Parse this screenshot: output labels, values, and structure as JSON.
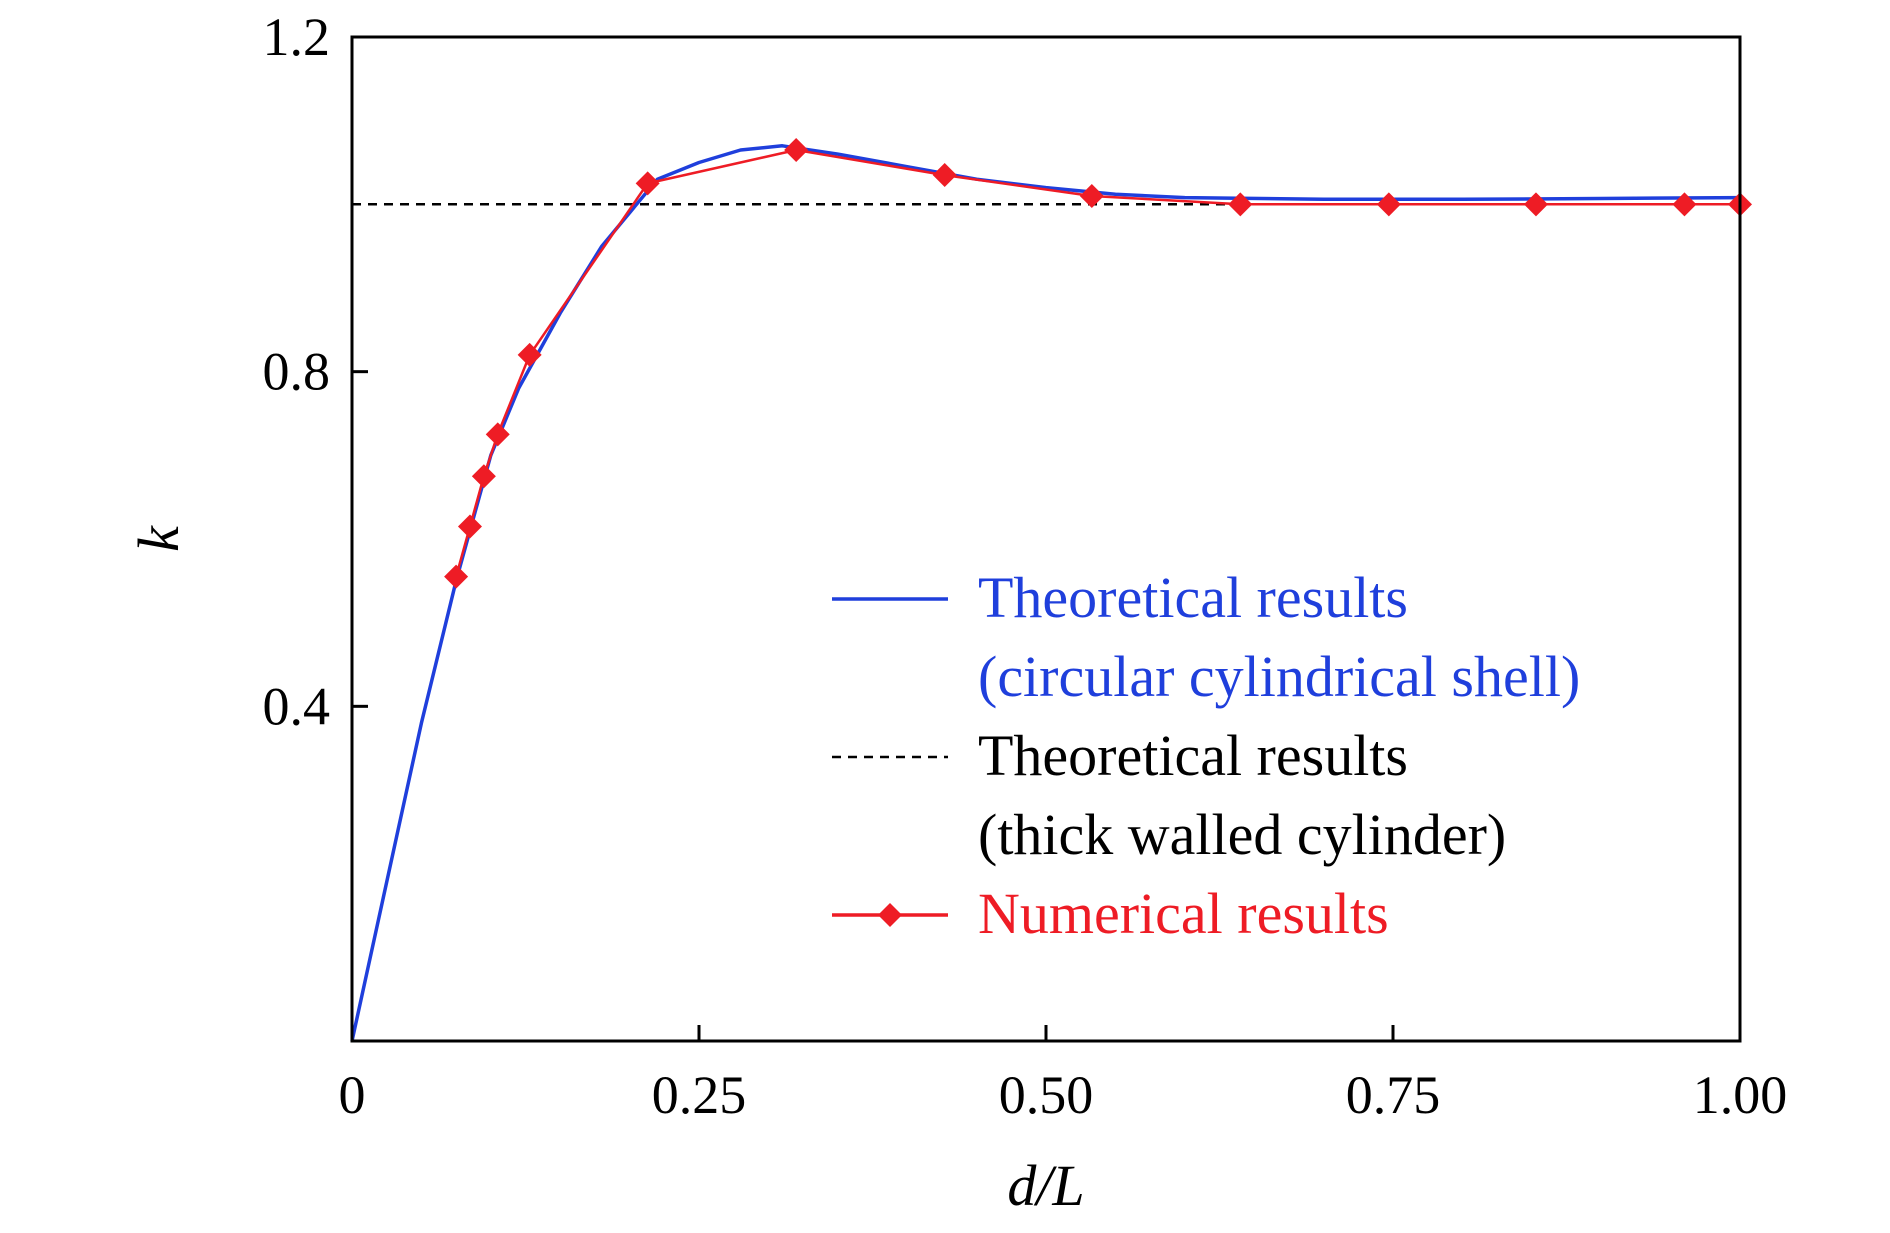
{
  "chart_data": {
    "type": "line",
    "title": "",
    "xlabel": "d/L",
    "ylabel": "k",
    "xlim": [
      0,
      1.0
    ],
    "ylim": [
      0,
      1.2
    ],
    "x_ticks": [
      0,
      0.25,
      0.5,
      0.75,
      1.0
    ],
    "x_tick_labels": [
      "0",
      "0.25",
      "0.50",
      "0.75",
      "1.00"
    ],
    "y_ticks": [
      0.4,
      0.8,
      1.2
    ],
    "y_tick_labels": [
      "0.4",
      "0.8",
      "1.2"
    ],
    "grid": false,
    "legend_position": "bottom-right",
    "series": [
      {
        "name": "Theoretical results (circular cylindrical shell)",
        "legend_lines": [
          "Theoretical results",
          "(circular cylindrical shell)"
        ],
        "color": "#1f3fdc",
        "style": "solid",
        "markers": false,
        "x": [
          0,
          0.025,
          0.05,
          0.075,
          0.09,
          0.1,
          0.12,
          0.15,
          0.18,
          0.2,
          0.22,
          0.25,
          0.28,
          0.31,
          0.35,
          0.4,
          0.45,
          0.5,
          0.55,
          0.6,
          0.7,
          0.8,
          0.9,
          1.0
        ],
        "y": [
          0,
          0.19,
          0.38,
          0.55,
          0.64,
          0.7,
          0.78,
          0.87,
          0.95,
          0.99,
          1.03,
          1.05,
          1.065,
          1.07,
          1.06,
          1.045,
          1.03,
          1.02,
          1.012,
          1.008,
          1.006,
          1.006,
          1.007,
          1.008
        ]
      },
      {
        "name": "Theoretical results (thick walled cylinder)",
        "legend_lines": [
          "Theoretical results",
          "(thick walled cylinder)"
        ],
        "color": "#000000",
        "style": "dashed",
        "markers": false,
        "x": [
          0,
          1.0
        ],
        "y": [
          1.0,
          1.0
        ]
      },
      {
        "name": "Numerical results",
        "legend_lines": [
          "Numerical results"
        ],
        "color": "#ee1c25",
        "style": "solid",
        "markers": true,
        "x": [
          0.075,
          0.085,
          0.095,
          0.105,
          0.128,
          0.213,
          0.32,
          0.427,
          0.533,
          0.64,
          0.747,
          0.853,
          0.96,
          1.0
        ],
        "y": [
          0.555,
          0.615,
          0.675,
          0.725,
          0.82,
          1.025,
          1.065,
          1.035,
          1.01,
          1.0,
          1.0,
          1.0,
          1.0,
          1.0
        ]
      }
    ]
  }
}
